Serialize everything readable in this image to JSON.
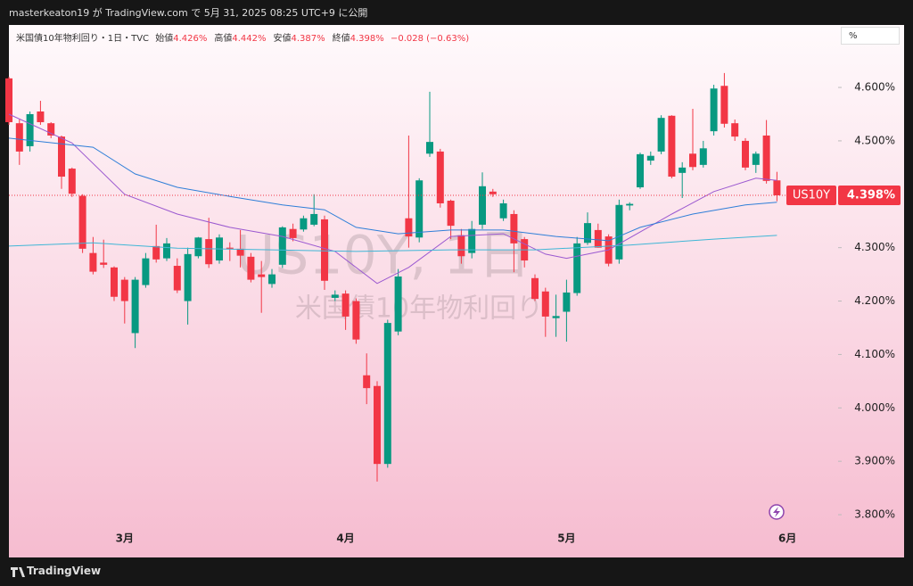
{
  "header": {
    "text": "masterkeaton19 が TradingView.com で 5月 31, 2025 08:25 UTC+9 に公開"
  },
  "legend": {
    "title": "米国債10年物利回り・1日・TVC",
    "fields": [
      {
        "label": "始値",
        "value": "4.426%"
      },
      {
        "label": "高値",
        "value": "4.442%"
      },
      {
        "label": "安値",
        "value": "4.387%"
      },
      {
        "label": "終値",
        "value": "4.398%"
      }
    ],
    "change": "−0.028 (−0.63%)"
  },
  "toolbar": {
    "unit_button": "%"
  },
  "footer": {
    "brand": "TradingView"
  },
  "chart_data": {
    "type": "candlestick",
    "watermark": [
      "US10Y, 1日",
      "米国債10年物利回り"
    ],
    "up_color": "#089981",
    "down_color": "#f23645",
    "categories": [
      null,
      null,
      null,
      null,
      null,
      null,
      null,
      null,
      null,
      null,
      null,
      "3月",
      null,
      null,
      null,
      null,
      null,
      null,
      null,
      null,
      null,
      null,
      null,
      null,
      null,
      null,
      null,
      null,
      null,
      null,
      null,
      null,
      "4月",
      null,
      null,
      null,
      null,
      null,
      null,
      null,
      null,
      null,
      null,
      null,
      null,
      null,
      null,
      null,
      null,
      null,
      null,
      null,
      null,
      "5月",
      null,
      null,
      null,
      null,
      null,
      null,
      null,
      null,
      null,
      null,
      null,
      null,
      null,
      null,
      null,
      null,
      null,
      null,
      null,
      null,
      "6月"
    ],
    "open": [
      4.617,
      4.533,
      4.49,
      4.555,
      4.533,
      4.508,
      4.448,
      4.397,
      4.29,
      4.272,
      4.263,
      4.24,
      4.14,
      4.23,
      4.303,
      4.28,
      4.266,
      4.2,
      4.284,
      4.316,
      4.276,
      4.3,
      4.298,
      4.283,
      4.25,
      4.232,
      4.268,
      4.335,
      4.334,
      4.343,
      4.353,
      4.206,
      4.214,
      4.2,
      4.061,
      4.041,
      3.895,
      4.143,
      4.355,
      4.319,
      4.476,
      4.48,
      4.388,
      4.323,
      4.29,
      4.343,
      4.405,
      4.355,
      4.363,
      4.316,
      4.243,
      4.218,
      4.168,
      4.18,
      4.215,
      4.309,
      4.333,
      4.321,
      4.278,
      4.379,
      4.413,
      4.463,
      4.48,
      4.547,
      4.44,
      4.476,
      4.455,
      4.518,
      4.603,
      4.533,
      4.5,
      4.455,
      4.51,
      4.426,
      null
    ],
    "high": [
      4.62,
      4.54,
      4.555,
      4.575,
      4.535,
      4.51,
      4.45,
      4.4,
      4.32,
      4.315,
      4.265,
      4.245,
      4.245,
      4.29,
      4.343,
      4.318,
      4.28,
      4.3,
      4.32,
      4.356,
      4.325,
      4.31,
      4.333,
      4.29,
      4.275,
      4.26,
      4.34,
      4.345,
      4.36,
      4.4,
      4.36,
      4.22,
      4.22,
      4.205,
      4.102,
      4.05,
      4.165,
      4.26,
      4.51,
      4.43,
      4.592,
      4.485,
      4.39,
      4.335,
      4.35,
      4.441,
      4.41,
      4.39,
      4.37,
      4.32,
      4.25,
      4.225,
      4.212,
      4.24,
      4.32,
      4.366,
      4.345,
      4.325,
      4.39,
      4.385,
      4.478,
      4.48,
      4.548,
      4.548,
      4.46,
      4.56,
      4.5,
      4.605,
      4.627,
      4.54,
      4.505,
      4.48,
      4.539,
      4.442,
      null
    ],
    "low": [
      4.53,
      4.455,
      4.48,
      4.53,
      4.505,
      4.41,
      4.395,
      4.29,
      4.25,
      4.262,
      4.2,
      4.158,
      4.112,
      4.225,
      4.272,
      4.275,
      4.215,
      4.156,
      4.28,
      4.262,
      4.27,
      4.275,
      4.263,
      4.235,
      4.178,
      4.225,
      4.262,
      4.312,
      4.33,
      4.34,
      4.221,
      4.2,
      4.146,
      4.12,
      4.007,
      3.862,
      3.888,
      4.136,
      4.3,
      4.31,
      4.47,
      4.375,
      4.316,
      4.27,
      4.28,
      4.335,
      4.395,
      4.35,
      4.254,
      4.263,
      4.2,
      4.133,
      4.133,
      4.124,
      4.21,
      4.305,
      4.3,
      4.265,
      4.27,
      4.37,
      4.41,
      4.455,
      4.475,
      4.43,
      4.393,
      4.445,
      4.45,
      4.51,
      4.525,
      4.5,
      4.445,
      4.44,
      4.42,
      4.387,
      null
    ],
    "close": [
      4.535,
      4.48,
      4.55,
      4.535,
      4.51,
      4.433,
      4.401,
      4.298,
      4.255,
      4.268,
      4.208,
      4.2,
      4.24,
      4.28,
      4.278,
      4.308,
      4.22,
      4.288,
      4.319,
      4.269,
      4.319,
      4.298,
      4.285,
      4.24,
      4.245,
      4.25,
      4.338,
      4.318,
      4.355,
      4.363,
      4.238,
      4.212,
      4.171,
      4.128,
      4.037,
      3.895,
      4.159,
      4.246,
      4.321,
      4.426,
      4.498,
      4.383,
      4.341,
      4.284,
      4.335,
      4.415,
      4.4,
      4.383,
      4.308,
      4.276,
      4.204,
      4.171,
      4.172,
      4.216,
      4.308,
      4.346,
      4.3,
      4.27,
      4.38,
      4.382,
      4.475,
      4.472,
      4.543,
      4.433,
      4.45,
      4.451,
      4.486,
      4.598,
      4.532,
      4.508,
      4.45,
      4.476,
      4.425,
      4.398,
      null
    ],
    "lines": [
      {
        "color": "#9b59d0",
        "x": [
          0,
          6,
          11,
          16,
          21,
          26,
          31,
          35,
          38,
          42,
          47,
          51,
          53,
          57,
          63,
          67,
          71,
          73
        ],
        "values": [
          4.55,
          4.496,
          4.4,
          4.363,
          4.338,
          4.321,
          4.293,
          4.233,
          4.263,
          4.321,
          4.326,
          4.288,
          4.28,
          4.296,
          4.363,
          4.405,
          4.43,
          4.426
        ]
      },
      {
        "color": "#2f7fd8",
        "x": [
          0,
          8,
          12,
          16,
          21,
          26,
          30,
          33,
          37,
          42,
          47,
          52,
          57,
          60,
          65,
          70,
          73
        ],
        "values": [
          4.505,
          4.488,
          4.438,
          4.413,
          4.396,
          4.38,
          4.371,
          4.338,
          4.326,
          4.333,
          4.333,
          4.321,
          4.313,
          4.338,
          4.363,
          4.38,
          4.385
        ]
      },
      {
        "color": "#3fb6d6",
        "x": [
          0,
          8,
          16,
          25,
          33,
          42,
          50,
          59,
          67,
          73
        ],
        "values": [
          4.303,
          4.309,
          4.299,
          4.296,
          4.293,
          4.296,
          4.296,
          4.305,
          4.316,
          4.323
        ]
      }
    ],
    "last_price": {
      "symbol": "US10Y",
      "value": 4.398,
      "label": "4.398%"
    },
    "ylim": [
      3.77,
      4.717
    ],
    "yticks": [
      {
        "value": 3.8,
        "label": "3.800%"
      },
      {
        "value": 3.9,
        "label": "3.900%"
      },
      {
        "value": 4.0,
        "label": "4.000%"
      },
      {
        "value": 4.1,
        "label": "4.100%"
      },
      {
        "value": 4.2,
        "label": "4.200%"
      },
      {
        "value": 4.3,
        "label": "4.300%"
      },
      {
        "value": 4.4,
        "label": "4.400%"
      },
      {
        "value": 4.5,
        "label": "4.500%"
      },
      {
        "value": 4.6,
        "label": "4.600%"
      }
    ]
  }
}
